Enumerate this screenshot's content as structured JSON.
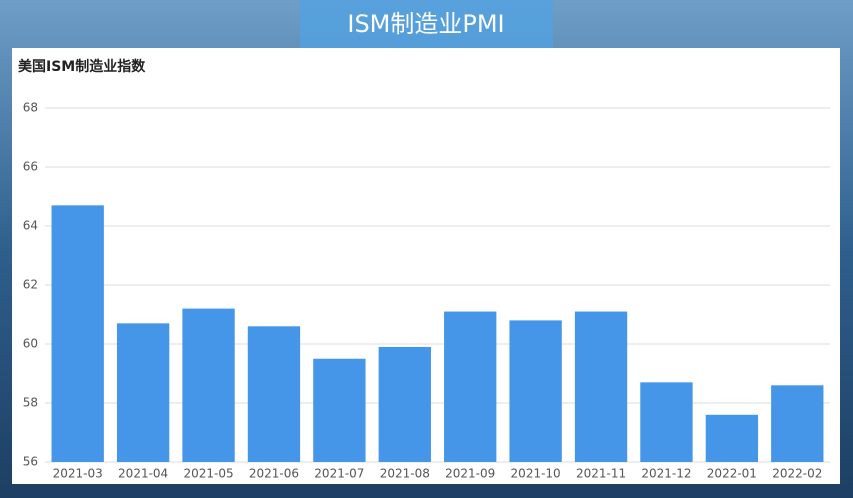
{
  "chart_data": {
    "type": "bar",
    "title": "ISM制造业PMI",
    "subtitle": "美国ISM制造业指数",
    "categories": [
      "2021-03",
      "2021-04",
      "2021-05",
      "2021-06",
      "2021-07",
      "2021-08",
      "2021-09",
      "2021-10",
      "2021-11",
      "2021-12",
      "2022-01",
      "2022-02"
    ],
    "values": [
      64.7,
      60.7,
      61.2,
      60.6,
      59.5,
      59.9,
      61.1,
      60.8,
      61.1,
      58.7,
      57.6,
      58.6
    ],
    "color": "#4596e8",
    "ylim": [
      56,
      68
    ],
    "yticks": [
      56,
      58,
      60,
      62,
      64,
      66,
      68
    ],
    "grid": true
  }
}
